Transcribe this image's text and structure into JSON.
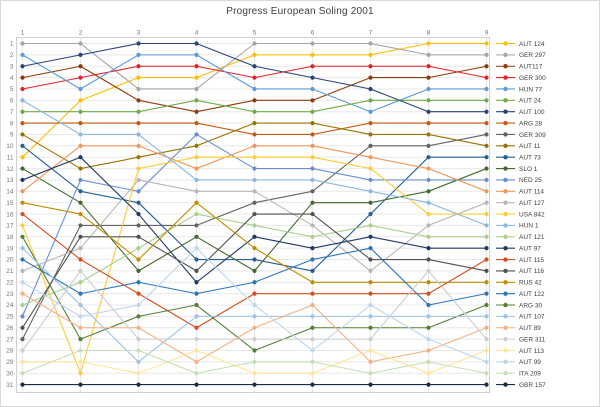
{
  "title": "Progress European Soling 2001",
  "chart_data": {
    "type": "line",
    "subtype": "bump-chart-of-rankings",
    "title": "Progress European Soling 2001",
    "xlabel": "",
    "ylabel": "",
    "x_ticks": [
      "1",
      "2",
      "3",
      "4",
      "5",
      "6",
      "7",
      "8",
      "9"
    ],
    "x_axis_position": "top",
    "y_ticks": [
      "1",
      "2",
      "3",
      "4",
      "5",
      "6",
      "7",
      "8",
      "9",
      "10",
      "11",
      "12",
      "13",
      "14",
      "15",
      "16",
      "17",
      "18",
      "19",
      "20",
      "21",
      "22",
      "23",
      "24",
      "25",
      "26",
      "27",
      "28",
      "29",
      "30",
      "31"
    ],
    "ylim": [
      1,
      31
    ],
    "y_inverted": true,
    "grid": true,
    "legend_position": "right",
    "series": [
      {
        "name": "AUT 124",
        "color": "#FFC000",
        "positions": [
          11,
          6,
          4,
          4,
          2,
          2,
          2,
          1,
          1
        ]
      },
      {
        "name": "GER 297",
        "color": "#A5A5A5",
        "positions": [
          1,
          1,
          5,
          5,
          1,
          1,
          1,
          2,
          2
        ]
      },
      {
        "name": "AUT117",
        "color": "#8E3B0C",
        "positions": [
          4,
          3,
          6,
          7,
          6,
          6,
          4,
          4,
          3
        ]
      },
      {
        "name": "GER 300",
        "color": "#E8202A",
        "positions": [
          5,
          4,
          3,
          3,
          4,
          3,
          3,
          3,
          4
        ]
      },
      {
        "name": "HUN 77",
        "color": "#5B9BD5",
        "positions": [
          2,
          5,
          2,
          2,
          5,
          5,
          7,
          5,
          5
        ]
      },
      {
        "name": "AUT 24",
        "color": "#70AD47",
        "positions": [
          7,
          7,
          7,
          6,
          7,
          7,
          6,
          6,
          6
        ]
      },
      {
        "name": "AUT 100",
        "color": "#264478",
        "positions": [
          3,
          2,
          1,
          1,
          3,
          4,
          5,
          7,
          7
        ]
      },
      {
        "name": "ARG 28",
        "color": "#C55A11",
        "positions": [
          8,
          8,
          8,
          8,
          9,
          9,
          8,
          8,
          8
        ]
      },
      {
        "name": "GER 309",
        "color": "#636363",
        "positions": [
          27,
          17,
          17,
          17,
          15,
          14,
          10,
          10,
          9
        ]
      },
      {
        "name": "AUT 11",
        "color": "#997300",
        "positions": [
          9,
          12,
          11,
          10,
          8,
          8,
          9,
          9,
          10
        ]
      },
      {
        "name": "AUT 73",
        "color": "#255E91",
        "positions": [
          10,
          14,
          15,
          20,
          20,
          21,
          16,
          11,
          11
        ]
      },
      {
        "name": "SLO 1",
        "color": "#43682B",
        "positions": [
          12,
          15,
          21,
          18,
          21,
          15,
          15,
          14,
          12
        ]
      },
      {
        "name": "NED 25",
        "color": "#698ED0",
        "positions": [
          25,
          13,
          14,
          9,
          12,
          12,
          13,
          13,
          13
        ]
      },
      {
        "name": "AUT 114",
        "color": "#F1975A",
        "positions": [
          14,
          10,
          10,
          12,
          10,
          10,
          11,
          12,
          14
        ]
      },
      {
        "name": "AUT 127",
        "color": "#B7B7B7",
        "positions": [
          21,
          19,
          13,
          14,
          14,
          17,
          21,
          17,
          15
        ]
      },
      {
        "name": "USA 842",
        "color": "#FFCD33",
        "positions": [
          17,
          30,
          12,
          11,
          11,
          11,
          12,
          16,
          16
        ]
      },
      {
        "name": "HUN 1",
        "color": "#8CB8E0",
        "positions": [
          6,
          9,
          9,
          13,
          13,
          13,
          14,
          15,
          17
        ]
      },
      {
        "name": "AUT 121",
        "color": "#A9D18E",
        "positions": [
          24,
          22,
          19,
          16,
          17,
          18,
          17,
          18,
          18
        ]
      },
      {
        "name": "AUT 97",
        "color": "#1F3864",
        "positions": [
          13,
          11,
          16,
          22,
          18,
          19,
          18,
          19,
          19
        ]
      },
      {
        "name": "AUT 115",
        "color": "#D4501E",
        "positions": [
          16,
          20,
          23,
          26,
          23,
          23,
          23,
          23,
          20
        ]
      },
      {
        "name": "AUT 116",
        "color": "#525252",
        "positions": [
          26,
          18,
          18,
          21,
          16,
          16,
          20,
          20,
          21
        ]
      },
      {
        "name": "RUS 42",
        "color": "#BF8F00",
        "positions": [
          15,
          16,
          20,
          15,
          19,
          22,
          22,
          22,
          22
        ]
      },
      {
        "name": "AUT 122",
        "color": "#2E75B6",
        "positions": [
          20,
          23,
          22,
          23,
          22,
          20,
          19,
          24,
          23
        ]
      },
      {
        "name": "ARG 30",
        "color": "#538135",
        "positions": [
          18,
          27,
          25,
          24,
          28,
          26,
          26,
          26,
          24
        ]
      },
      {
        "name": "AUT 107",
        "color": "#9DC3E6",
        "positions": [
          19,
          24,
          29,
          25,
          25,
          25,
          25,
          25,
          25
        ]
      },
      {
        "name": "AUT 89",
        "color": "#F4B183",
        "positions": [
          23,
          26,
          26,
          29,
          26,
          24,
          29,
          28,
          26
        ]
      },
      {
        "name": "GER 311",
        "color": "#CFCDCD",
        "positions": [
          28,
          21,
          27,
          27,
          27,
          27,
          27,
          21,
          27
        ]
      },
      {
        "name": "AUT 113",
        "color": "#FFE699",
        "positions": [
          29,
          29,
          30,
          28,
          30,
          30,
          28,
          30,
          28
        ]
      },
      {
        "name": "AUT 99",
        "color": "#BDD7EE",
        "positions": [
          22,
          25,
          24,
          19,
          24,
          28,
          24,
          27,
          29
        ]
      },
      {
        "name": "ITA 209",
        "color": "#C5E0B4",
        "positions": [
          30,
          28,
          28,
          30,
          29,
          29,
          30,
          29,
          30
        ]
      },
      {
        "name": "GBR 157",
        "color": "#1B2A49",
        "positions": [
          31,
          31,
          31,
          31,
          31,
          31,
          31,
          31,
          31
        ]
      }
    ]
  }
}
